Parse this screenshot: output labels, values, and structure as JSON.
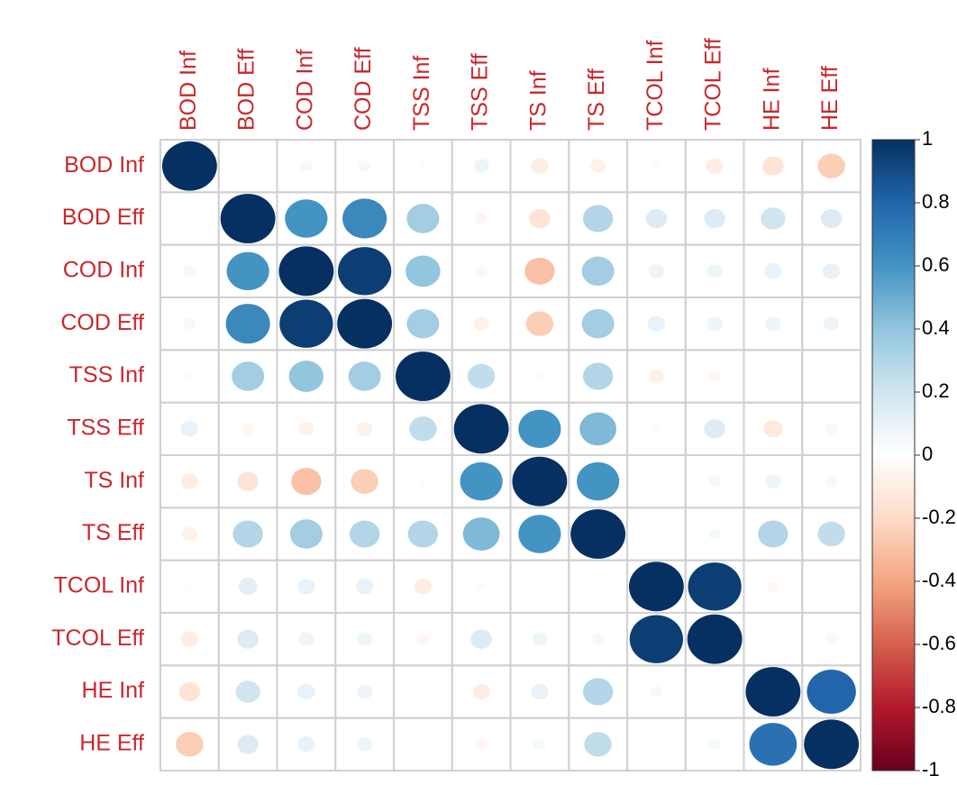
{
  "chart_data": {
    "type": "corrplot",
    "columns": [
      "BOD Inf",
      "BOD Eff",
      "COD Inf",
      "COD Eff",
      "TSS Inf",
      "TSS Eff",
      "TS Inf",
      "TS Eff",
      "TCOL Inf",
      "TCOL Eff",
      "HE Inf",
      "HE Eff"
    ],
    "rows": [
      "BOD Inf",
      "BOD Eff",
      "COD Inf",
      "COD Eff",
      "TSS Inf",
      "TSS Eff",
      "TS Inf",
      "TS Eff",
      "TCOL Inf",
      "TCOL Eff",
      "HE Inf",
      "HE Eff"
    ],
    "values": [
      [
        1,
        0.0,
        0.05,
        0.05,
        0.02,
        0.08,
        -0.1,
        -0.08,
        0.02,
        -0.1,
        -0.15,
        -0.25
      ],
      [
        0.0,
        1,
        0.6,
        0.65,
        0.35,
        -0.05,
        -0.15,
        0.3,
        0.15,
        0.15,
        0.2,
        0.15
      ],
      [
        0.05,
        0.6,
        1,
        0.95,
        0.4,
        -0.05,
        -0.3,
        0.35,
        0.08,
        0.08,
        0.1,
        0.1
      ],
      [
        0.05,
        0.65,
        0.95,
        1,
        0.35,
        -0.08,
        -0.25,
        0.35,
        0.1,
        0.08,
        0.08,
        0.08
      ],
      [
        0.02,
        0.35,
        0.4,
        0.35,
        1,
        0.25,
        0.02,
        0.3,
        -0.08,
        -0.05,
        0.01,
        0.01
      ],
      [
        0.1,
        -0.05,
        -0.08,
        -0.08,
        0.25,
        1,
        0.6,
        0.45,
        0.03,
        0.15,
        -0.12,
        -0.05
      ],
      [
        -0.1,
        -0.15,
        -0.3,
        -0.25,
        0.02,
        0.6,
        1,
        0.6,
        0.01,
        0.05,
        0.08,
        0.05
      ],
      [
        -0.08,
        0.3,
        0.35,
        0.3,
        0.3,
        0.45,
        0.6,
        1,
        0.01,
        0.05,
        0.3,
        0.25
      ],
      [
        0.02,
        0.12,
        0.1,
        0.1,
        -0.1,
        0.03,
        0.01,
        0.01,
        1,
        0.95,
        -0.05,
        0.0
      ],
      [
        -0.1,
        0.15,
        0.08,
        0.08,
        -0.05,
        0.15,
        0.08,
        0.05,
        0.95,
        1,
        0.0,
        0.05
      ],
      [
        -0.15,
        0.2,
        0.1,
        0.08,
        0.01,
        -0.1,
        0.1,
        0.3,
        -0.05,
        0.01,
        1,
        0.8
      ],
      [
        -0.25,
        0.15,
        0.1,
        0.08,
        0.01,
        -0.05,
        0.05,
        0.25,
        0.01,
        0.05,
        0.75,
        1
      ]
    ],
    "colorscale": [
      "#67001F",
      "#B2182B",
      "#D6604D",
      "#F4A582",
      "#FDDBC7",
      "#FFFFFF",
      "#D1E5F0",
      "#92C5DE",
      "#4393C3",
      "#2166AC",
      "#053061"
    ],
    "clim": [
      -1,
      1
    ],
    "colorbar_ticks": [
      1,
      0.8,
      0.6,
      0.4,
      0.2,
      0,
      -0.2,
      -0.4,
      -0.6,
      -0.8,
      -1
    ]
  }
}
